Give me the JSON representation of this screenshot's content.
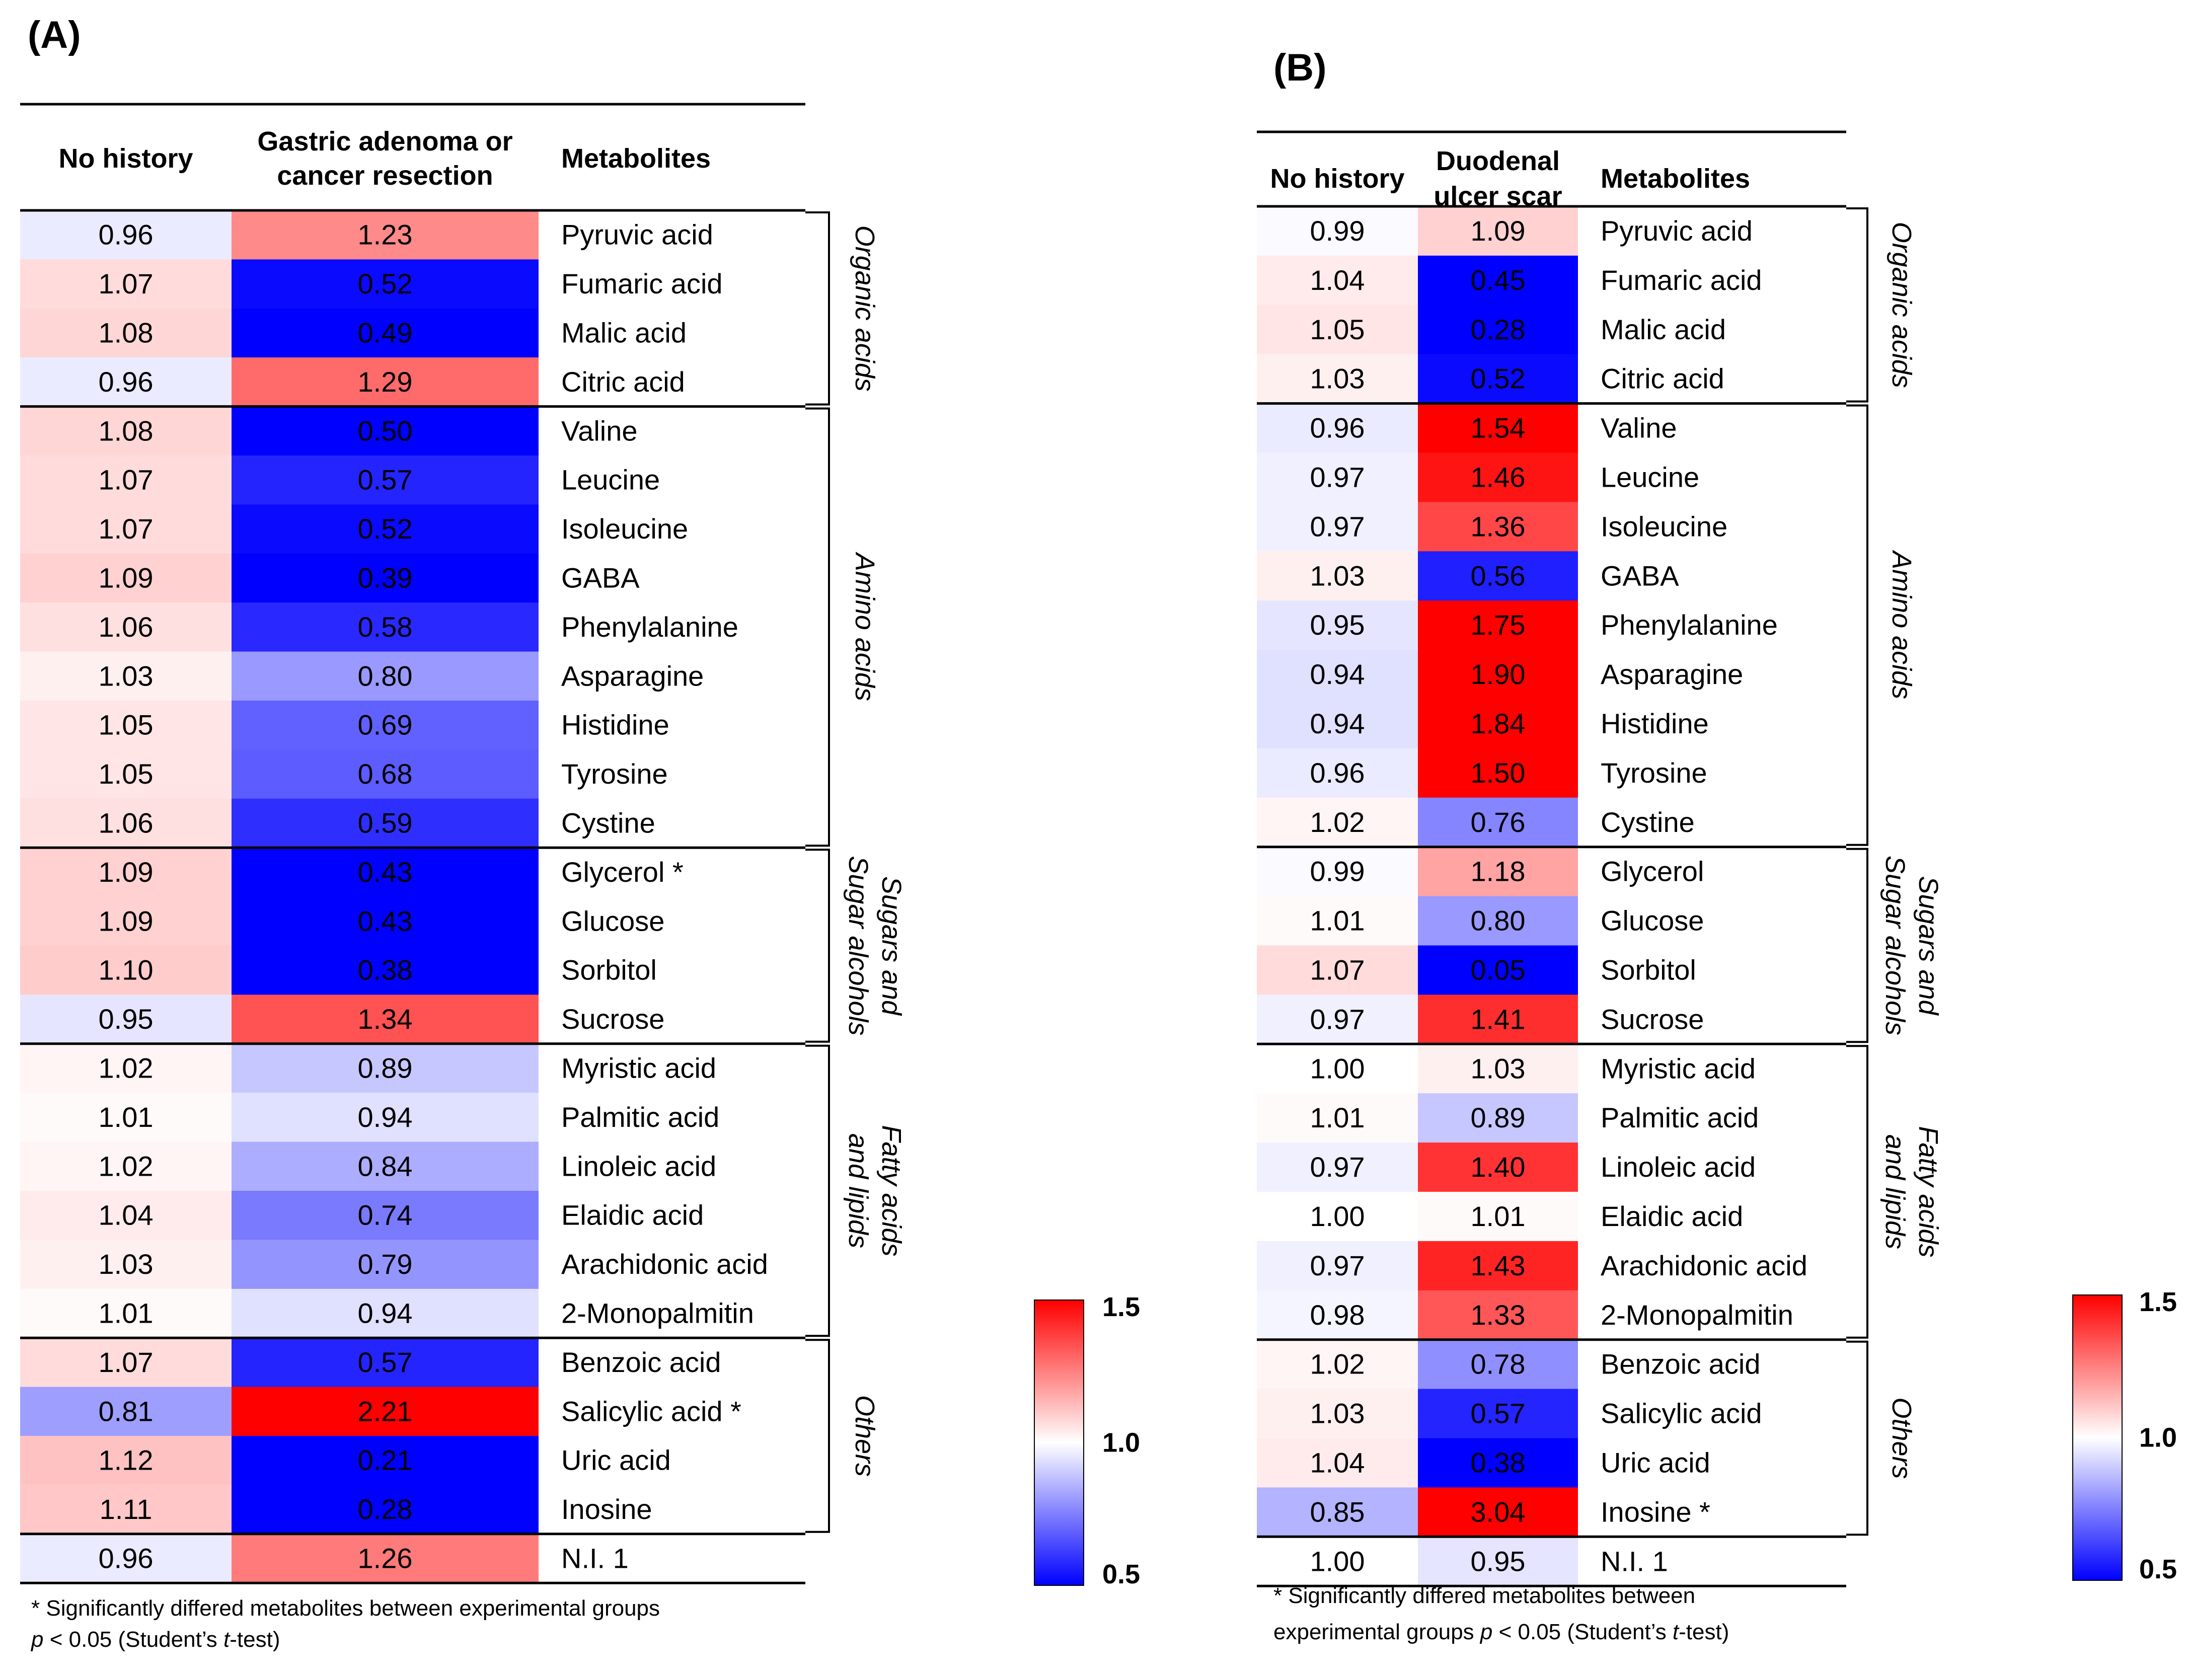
{
  "legend_colors": {
    "low": "#0000ff",
    "mid": "#ffffff",
    "high": "#ff0000"
  },
  "chart_data": [
    {
      "type": "heatmap",
      "panel": "(A)",
      "columns": [
        "No history",
        "Gastric adenoma or cancer resection",
        "Metabolites"
      ],
      "column_header_lines": [
        [
          "No history"
        ],
        [
          "Gastric adenoma or",
          "cancer resection"
        ],
        [
          "Metabolites"
        ]
      ],
      "color_scale": {
        "min": 0.5,
        "mid": 1.0,
        "max": 1.5,
        "tick_labels": [
          "1.5",
          "1.0",
          "0.5"
        ]
      },
      "groups": [
        {
          "lines": [
            "Organic acids"
          ],
          "rows": [
            {
              "metabolite": "Pyruvic acid",
              "no_history": 0.96,
              "comparison": 1.23
            },
            {
              "metabolite": "Fumaric acid",
              "no_history": 1.07,
              "comparison": 0.52
            },
            {
              "metabolite": "Malic acid",
              "no_history": 1.08,
              "comparison": 0.49
            },
            {
              "metabolite": "Citric acid",
              "no_history": 0.96,
              "comparison": 1.29
            }
          ]
        },
        {
          "lines": [
            "Amino acids"
          ],
          "rows": [
            {
              "metabolite": "Valine",
              "no_history": 1.08,
              "comparison": 0.5
            },
            {
              "metabolite": "Leucine",
              "no_history": 1.07,
              "comparison": 0.57
            },
            {
              "metabolite": "Isoleucine",
              "no_history": 1.07,
              "comparison": 0.52
            },
            {
              "metabolite": "GABA",
              "no_history": 1.09,
              "comparison": 0.39
            },
            {
              "metabolite": "Phenylalanine",
              "no_history": 1.06,
              "comparison": 0.58
            },
            {
              "metabolite": "Asparagine",
              "no_history": 1.03,
              "comparison": 0.8
            },
            {
              "metabolite": "Histidine",
              "no_history": 1.05,
              "comparison": 0.69
            },
            {
              "metabolite": "Tyrosine",
              "no_history": 1.05,
              "comparison": 0.68
            },
            {
              "metabolite": "Cystine",
              "no_history": 1.06,
              "comparison": 0.59
            }
          ]
        },
        {
          "lines": [
            "Sugars and",
            "Sugar alcohols"
          ],
          "rows": [
            {
              "metabolite": "Glycerol *",
              "no_history": 1.09,
              "comparison": 0.43
            },
            {
              "metabolite": "Glucose",
              "no_history": 1.09,
              "comparison": 0.43
            },
            {
              "metabolite": "Sorbitol",
              "no_history": 1.1,
              "comparison": 0.38
            },
            {
              "metabolite": "Sucrose",
              "no_history": 0.95,
              "comparison": 1.34
            }
          ]
        },
        {
          "lines": [
            "Fatty acids",
            "and lipids"
          ],
          "rows": [
            {
              "metabolite": "Myristic acid",
              "no_history": 1.02,
              "comparison": 0.89
            },
            {
              "metabolite": "Palmitic acid",
              "no_history": 1.01,
              "comparison": 0.94
            },
            {
              "metabolite": "Linoleic acid",
              "no_history": 1.02,
              "comparison": 0.84
            },
            {
              "metabolite": "Elaidic acid",
              "no_history": 1.04,
              "comparison": 0.74
            },
            {
              "metabolite": "Arachidonic acid",
              "no_history": 1.03,
              "comparison": 0.79
            },
            {
              "metabolite": "2-Monopalmitin",
              "no_history": 1.01,
              "comparison": 0.94
            }
          ]
        },
        {
          "lines": [
            "Others"
          ],
          "rows": [
            {
              "metabolite": "Benzoic acid",
              "no_history": 1.07,
              "comparison": 0.57
            },
            {
              "metabolite": "Salicylic acid *",
              "no_history": 0.81,
              "comparison": 2.21
            },
            {
              "metabolite": "Uric acid",
              "no_history": 1.12,
              "comparison": 0.21
            },
            {
              "metabolite": "Inosine",
              "no_history": 1.11,
              "comparison": 0.28
            }
          ]
        },
        {
          "lines": [],
          "rows": [
            {
              "metabolite": "N.I. 1",
              "no_history": 0.96,
              "comparison": 1.26
            }
          ]
        }
      ],
      "footnote_lines": [
        [
          {
            "t": "* Significantly differed metabolites between experimental groups"
          }
        ],
        [
          {
            "t": "p",
            "i": true
          },
          {
            "t": " < 0.05 (Student’s "
          },
          {
            "t": "t",
            "i": true
          },
          {
            "t": "-test)"
          }
        ]
      ]
    },
    {
      "type": "heatmap",
      "panel": "(B)",
      "columns": [
        "No history",
        "Duodenal ulcer scar",
        "Metabolites"
      ],
      "column_header_lines": [
        [
          "No history"
        ],
        [
          "Duodenal",
          "ulcer scar"
        ],
        [
          "Metabolites"
        ]
      ],
      "color_scale": {
        "min": 0.5,
        "mid": 1.0,
        "max": 1.5,
        "tick_labels": [
          "1.5",
          "1.0",
          "0.5"
        ]
      },
      "groups": [
        {
          "lines": [
            "Organic acids"
          ],
          "rows": [
            {
              "metabolite": "Pyruvic acid",
              "no_history": 0.99,
              "comparison": 1.09
            },
            {
              "metabolite": "Fumaric acid",
              "no_history": 1.04,
              "comparison": 0.45
            },
            {
              "metabolite": "Malic acid",
              "no_history": 1.05,
              "comparison": 0.28
            },
            {
              "metabolite": "Citric acid",
              "no_history": 1.03,
              "comparison": 0.52
            }
          ]
        },
        {
          "lines": [
            "Amino acids"
          ],
          "rows": [
            {
              "metabolite": "Valine",
              "no_history": 0.96,
              "comparison": 1.54
            },
            {
              "metabolite": "Leucine",
              "no_history": 0.97,
              "comparison": 1.46
            },
            {
              "metabolite": "Isoleucine",
              "no_history": 0.97,
              "comparison": 1.36
            },
            {
              "metabolite": "GABA",
              "no_history": 1.03,
              "comparison": 0.56
            },
            {
              "metabolite": "Phenylalanine",
              "no_history": 0.95,
              "comparison": 1.75
            },
            {
              "metabolite": "Asparagine",
              "no_history": 0.94,
              "comparison": 1.9
            },
            {
              "metabolite": "Histidine",
              "no_history": 0.94,
              "comparison": 1.84
            },
            {
              "metabolite": "Tyrosine",
              "no_history": 0.96,
              "comparison": 1.5
            },
            {
              "metabolite": "Cystine",
              "no_history": 1.02,
              "comparison": 0.76
            }
          ]
        },
        {
          "lines": [
            "Sugars and",
            "Sugar alcohols"
          ],
          "rows": [
            {
              "metabolite": "Glycerol",
              "no_history": 0.99,
              "comparison": 1.18
            },
            {
              "metabolite": "Glucose",
              "no_history": 1.01,
              "comparison": 0.8
            },
            {
              "metabolite": "Sorbitol",
              "no_history": 1.07,
              "comparison": 0.05
            },
            {
              "metabolite": "Sucrose",
              "no_history": 0.97,
              "comparison": 1.41
            }
          ]
        },
        {
          "lines": [
            "Fatty acids",
            "and lipids"
          ],
          "rows": [
            {
              "metabolite": "Myristic acid",
              "no_history": 1.0,
              "comparison": 1.03
            },
            {
              "metabolite": "Palmitic acid",
              "no_history": 1.01,
              "comparison": 0.89
            },
            {
              "metabolite": "Linoleic acid",
              "no_history": 0.97,
              "comparison": 1.4
            },
            {
              "metabolite": "Elaidic acid",
              "no_history": 1.0,
              "comparison": 1.01
            },
            {
              "metabolite": "Arachidonic acid",
              "no_history": 0.97,
              "comparison": 1.43
            },
            {
              "metabolite": "2-Monopalmitin",
              "no_history": 0.98,
              "comparison": 1.33
            }
          ]
        },
        {
          "lines": [
            "Others"
          ],
          "rows": [
            {
              "metabolite": "Benzoic acid",
              "no_history": 1.02,
              "comparison": 0.78
            },
            {
              "metabolite": "Salicylic acid",
              "no_history": 1.03,
              "comparison": 0.57
            },
            {
              "metabolite": "Uric acid",
              "no_history": 1.04,
              "comparison": 0.38
            },
            {
              "metabolite": "Inosine *",
              "no_history": 0.85,
              "comparison": 3.04
            }
          ]
        },
        {
          "lines": [],
          "rows": [
            {
              "metabolite": "N.I. 1",
              "no_history": 1.0,
              "comparison": 0.95
            }
          ]
        }
      ],
      "footnote_lines": [
        [
          {
            "t": "* Significantly differed metabolites between"
          }
        ],
        [
          {
            "t": "experimental groups "
          },
          {
            "t": "p",
            "i": true
          },
          {
            "t": " < 0.05 (Student’s "
          },
          {
            "t": "t",
            "i": true
          },
          {
            "t": "-test)"
          }
        ]
      ]
    }
  ]
}
